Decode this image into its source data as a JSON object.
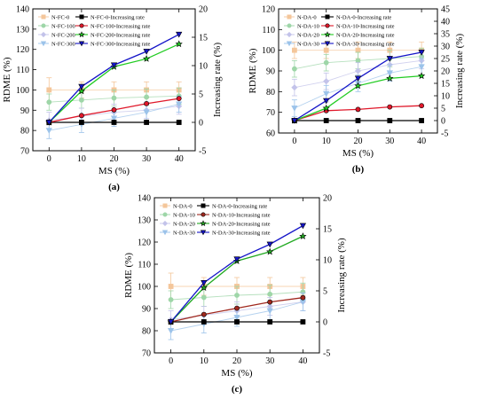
{
  "chart_data": [
    {
      "type": "line",
      "panel_label": "(a)",
      "x": [
        0,
        10,
        20,
        30,
        40
      ],
      "xlabel": "MS (%)",
      "ylabel": "RDME (%)",
      "ylabel_right": "Increasing rate (%)",
      "ylim": [
        70,
        140
      ],
      "ylim_right": [
        -5,
        20
      ],
      "xticks": [
        "0",
        "10",
        "20",
        "30",
        "40"
      ],
      "yticks": [
        "70",
        "80",
        "90",
        "100",
        "110",
        "120",
        "130",
        "140"
      ],
      "yticks_right": [
        "-5",
        "0",
        "5",
        "10",
        "15",
        "20"
      ],
      "grid": false,
      "legend_placement": "top-left",
      "series": [
        {
          "name": "N-FC-0",
          "axis": "left",
          "marker": "square",
          "faded": true,
          "color": "#f4c69a",
          "values": [
            100,
            100,
            100,
            100,
            100
          ],
          "errors": [
            6,
            4,
            4,
            4,
            4
          ]
        },
        {
          "name": "N-FC-100",
          "axis": "left",
          "marker": "circle",
          "faded": true,
          "color": "#9ed6a8",
          "values": [
            94,
            95,
            96,
            96.5,
            97
          ],
          "errors": [
            4,
            4,
            4,
            4,
            4
          ]
        },
        {
          "name": "N-FC-200",
          "axis": "left",
          "marker": "diamond",
          "faded": true,
          "color": "#c3c3ea",
          "values": [
            85,
            87,
            89,
            90,
            92
          ],
          "errors": [
            4,
            4,
            4,
            4,
            4
          ]
        },
        {
          "name": "N-FC-300",
          "axis": "left",
          "marker": "triangle-down",
          "faded": true,
          "color": "#9cc3ea",
          "values": [
            80,
            83,
            86,
            89,
            93
          ],
          "errors": [
            4,
            4,
            4,
            4,
            4
          ]
        },
        {
          "name": "N-FC-0-Increasing rate",
          "axis": "right",
          "marker": "square",
          "color": "#000000",
          "values": [
            0,
            0,
            0,
            0,
            0
          ]
        },
        {
          "name": "N-FC-100-Increasing rate",
          "axis": "right",
          "marker": "circle",
          "color": "#e0182a",
          "values": [
            0,
            1.2,
            2.2,
            3.3,
            4.2
          ]
        },
        {
          "name": "N-FC-200-Increasing rate",
          "axis": "right",
          "marker": "star",
          "color": "#22cc22",
          "values": [
            0,
            5.5,
            9.8,
            11.2,
            13.8
          ]
        },
        {
          "name": "N-FC-300-Increasing rate",
          "axis": "right",
          "marker": "triangle-down",
          "color": "#1414c8",
          "values": [
            0,
            6.3,
            10.1,
            12.5,
            15.5
          ]
        }
      ]
    },
    {
      "type": "line",
      "panel_label": "(b)",
      "x": [
        0,
        10,
        20,
        30,
        40
      ],
      "xlabel": "MS (%)",
      "ylabel": "RDME (%)",
      "ylabel_right": "Increasing rate (%)",
      "ylim": [
        60,
        120
      ],
      "ylim_right": [
        -5,
        45
      ],
      "xticks": [
        "0",
        "10",
        "20",
        "30",
        "40"
      ],
      "yticks": [
        "60",
        "70",
        "80",
        "90",
        "100",
        "110",
        "120"
      ],
      "yticks_right": [
        "-5",
        "0",
        "5",
        "10",
        "15",
        "20",
        "25",
        "30",
        "35",
        "40",
        "45"
      ],
      "grid": false,
      "legend_placement": "top-left",
      "series": [
        {
          "name": "N-DA-0",
          "axis": "left",
          "marker": "square",
          "faded": true,
          "color": "#f4c69a",
          "values": [
            100,
            100,
            100,
            100,
            100
          ],
          "errors": [
            4,
            4,
            4,
            4,
            4
          ]
        },
        {
          "name": "N-DA-10",
          "axis": "left",
          "marker": "circle",
          "faded": true,
          "color": "#9ed6a8",
          "values": [
            91,
            94,
            95,
            96,
            97
          ],
          "errors": [
            4,
            4,
            4,
            4,
            4
          ]
        },
        {
          "name": "N-DA-20",
          "axis": "left",
          "marker": "diamond",
          "faded": true,
          "color": "#c3c3ea",
          "values": [
            82,
            85,
            90,
            93,
            95
          ],
          "errors": [
            4,
            4,
            4,
            4,
            4
          ]
        },
        {
          "name": "N-DA-30",
          "axis": "left",
          "marker": "triangle-down",
          "faded": true,
          "color": "#9cc3ea",
          "values": [
            72,
            79,
            84,
            89,
            92
          ],
          "errors": [
            4,
            4,
            4,
            4,
            4
          ]
        },
        {
          "name": "N-DA-0-Increasing rate",
          "axis": "right",
          "marker": "square",
          "color": "#000000",
          "values": [
            0,
            0,
            0,
            0,
            0
          ]
        },
        {
          "name": "N-DA-10-Increasing rate",
          "axis": "right",
          "marker": "circle",
          "color": "#e0182a",
          "values": [
            0,
            4,
            4.5,
            5.5,
            6
          ]
        },
        {
          "name": "N-DA-20-Increasing rate",
          "axis": "right",
          "marker": "star",
          "color": "#22cc22",
          "values": [
            0,
            5,
            14,
            17,
            18
          ]
        },
        {
          "name": "N-DA-30-Increasing rate",
          "axis": "right",
          "marker": "triangle-down",
          "color": "#1414c8",
          "values": [
            0,
            8,
            17,
            25,
            27.5
          ]
        }
      ]
    },
    {
      "type": "line",
      "panel_label": "(c)",
      "x": [
        0,
        10,
        20,
        30,
        40
      ],
      "xlabel": "MS (%)",
      "ylabel": "RDME (%)",
      "ylabel_right": "Increasing rate (%)",
      "ylim": [
        70,
        140
      ],
      "ylim_right": [
        -5,
        20
      ],
      "xticks": [
        "0",
        "10",
        "20",
        "30",
        "40"
      ],
      "yticks": [
        "70",
        "80",
        "90",
        "100",
        "110",
        "120",
        "130",
        "140"
      ],
      "yticks_right": [
        "-5",
        "0",
        "5",
        "10",
        "15",
        "20"
      ],
      "grid": false,
      "legend_placement": "top-left",
      "series": [
        {
          "name": "N-DA-0",
          "axis": "left",
          "marker": "square",
          "faded": true,
          "color": "#f4c69a",
          "values": [
            100,
            100,
            100,
            100,
            100
          ],
          "errors": [
            6,
            4,
            4,
            4,
            4
          ]
        },
        {
          "name": "N-DA-10",
          "axis": "left",
          "marker": "circle",
          "faded": true,
          "color": "#9ed6a8",
          "values": [
            94,
            95,
            96,
            96.5,
            97.5
          ],
          "errors": [
            4,
            4,
            4,
            4,
            4
          ]
        },
        {
          "name": "N-DA-20",
          "axis": "left",
          "marker": "diamond",
          "faded": true,
          "color": "#c3c3ea",
          "values": [
            85,
            87,
            89,
            91,
            93
          ],
          "errors": [
            4,
            4,
            4,
            4,
            4
          ]
        },
        {
          "name": "N-DA-30",
          "axis": "left",
          "marker": "triangle-down",
          "faded": true,
          "color": "#9cc3ea",
          "values": [
            80,
            83,
            86,
            89,
            93
          ],
          "errors": [
            4,
            4,
            4,
            4,
            4
          ]
        },
        {
          "name": "N-DA-0-Increasing rate",
          "axis": "right",
          "marker": "square",
          "color": "#000000",
          "values": [
            0,
            0,
            0,
            0,
            0
          ]
        },
        {
          "name": "N-DA-10-Increasing rate",
          "axis": "right",
          "marker": "circle",
          "color": "#a0281e",
          "values": [
            0,
            1.2,
            2.2,
            3.2,
            3.9
          ]
        },
        {
          "name": "N-DA-20-Increasing rate",
          "axis": "right",
          "marker": "star",
          "color": "#22aa22",
          "values": [
            0,
            5.5,
            9.8,
            11.3,
            13.8
          ]
        },
        {
          "name": "N-DA-30-Increasing rate",
          "axis": "right",
          "marker": "triangle-down",
          "color": "#1414c8",
          "values": [
            0,
            6.3,
            10.1,
            12.5,
            15.5
          ]
        }
      ]
    }
  ]
}
